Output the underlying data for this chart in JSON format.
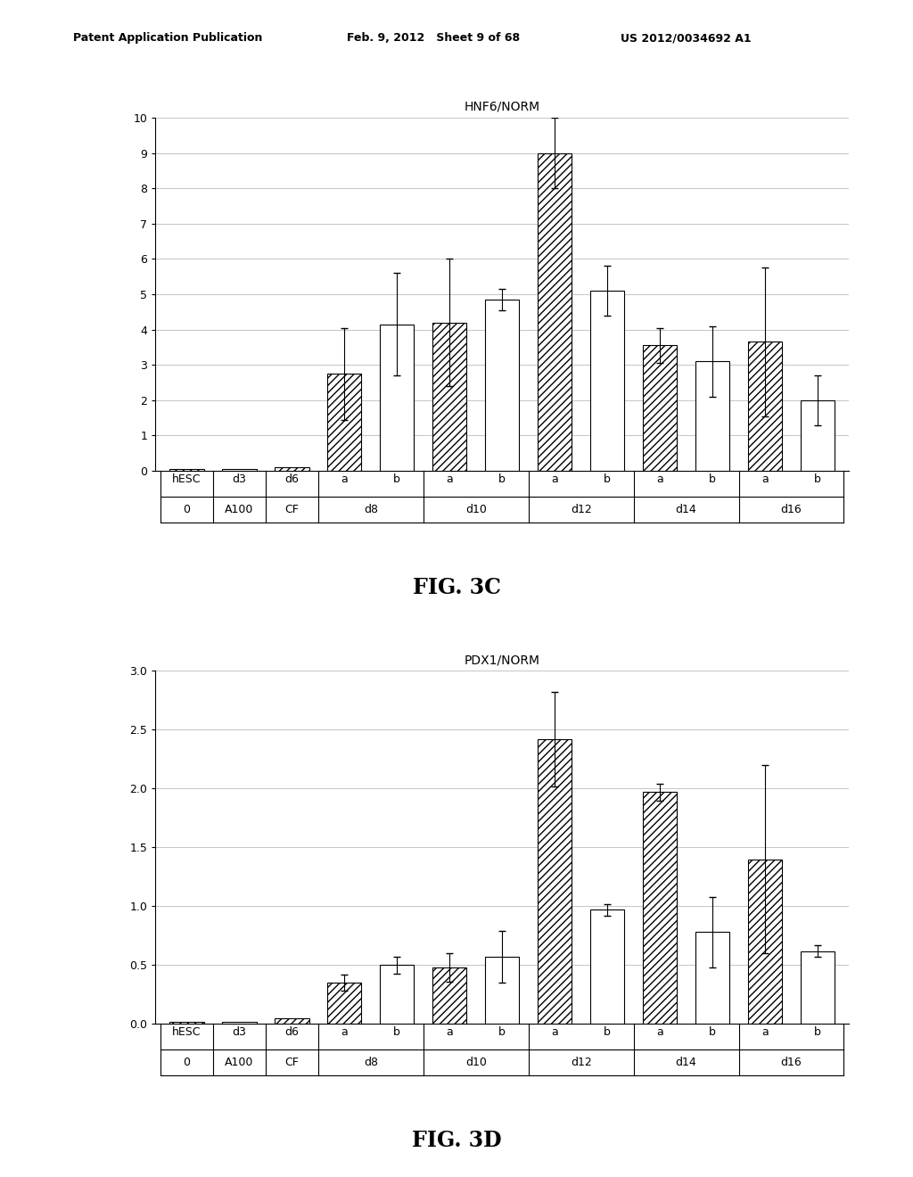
{
  "fig3c": {
    "title": "HNF6/NORM",
    "ylim": [
      0,
      10
    ],
    "yticks": [
      0,
      1,
      2,
      3,
      4,
      5,
      6,
      7,
      8,
      9,
      10
    ],
    "bars": [
      {
        "label": "hESC",
        "group": "0",
        "value": 0.05,
        "err": 0.0,
        "hatch": true
      },
      {
        "label": "d3",
        "group": "A100",
        "value": 0.05,
        "err": 0.0,
        "hatch": false
      },
      {
        "label": "d6",
        "group": "CF",
        "value": 0.1,
        "err": 0.0,
        "hatch": true
      },
      {
        "label": "a",
        "group": "d8",
        "value": 2.75,
        "err": 1.3,
        "hatch": true
      },
      {
        "label": "b",
        "group": "d8",
        "value": 4.15,
        "err": 1.45,
        "hatch": false
      },
      {
        "label": "a",
        "group": "d10",
        "value": 4.2,
        "err": 1.8,
        "hatch": true
      },
      {
        "label": "b",
        "group": "d10",
        "value": 4.85,
        "err": 0.3,
        "hatch": false
      },
      {
        "label": "a",
        "group": "d12",
        "value": 9.0,
        "err": 1.0,
        "hatch": true
      },
      {
        "label": "b",
        "group": "d12",
        "value": 5.1,
        "err": 0.7,
        "hatch": false
      },
      {
        "label": "a",
        "group": "d14",
        "value": 3.55,
        "err": 0.5,
        "hatch": true
      },
      {
        "label": "b",
        "group": "d14",
        "value": 3.1,
        "err": 1.0,
        "hatch": false
      },
      {
        "label": "a",
        "group": "d16",
        "value": 3.65,
        "err": 2.1,
        "hatch": true
      },
      {
        "label": "b",
        "group": "d16",
        "value": 2.0,
        "err": 0.7,
        "hatch": false
      }
    ],
    "fig_label": "FIG. 3C"
  },
  "fig3d": {
    "title": "PDX1/NORM",
    "ylim": [
      0,
      3
    ],
    "yticks": [
      0,
      0.5,
      1.0,
      1.5,
      2.0,
      2.5,
      3.0
    ],
    "bars": [
      {
        "label": "hESC",
        "group": "0",
        "value": 0.02,
        "err": 0.0,
        "hatch": true
      },
      {
        "label": "d3",
        "group": "A100",
        "value": 0.02,
        "err": 0.0,
        "hatch": false
      },
      {
        "label": "d6",
        "group": "CF",
        "value": 0.05,
        "err": 0.0,
        "hatch": true
      },
      {
        "label": "a",
        "group": "d8",
        "value": 0.35,
        "err": 0.07,
        "hatch": true
      },
      {
        "label": "b",
        "group": "d8",
        "value": 0.5,
        "err": 0.07,
        "hatch": false
      },
      {
        "label": "a",
        "group": "d10",
        "value": 0.48,
        "err": 0.12,
        "hatch": true
      },
      {
        "label": "b",
        "group": "d10",
        "value": 0.57,
        "err": 0.22,
        "hatch": false
      },
      {
        "label": "a",
        "group": "d12",
        "value": 2.42,
        "err": 0.4,
        "hatch": true
      },
      {
        "label": "b",
        "group": "d12",
        "value": 0.97,
        "err": 0.05,
        "hatch": false
      },
      {
        "label": "a",
        "group": "d14",
        "value": 1.97,
        "err": 0.07,
        "hatch": true
      },
      {
        "label": "b",
        "group": "d14",
        "value": 0.78,
        "err": 0.3,
        "hatch": false
      },
      {
        "label": "a",
        "group": "d16",
        "value": 1.4,
        "err": 0.8,
        "hatch": true
      },
      {
        "label": "b",
        "group": "d16",
        "value": 0.62,
        "err": 0.05,
        "hatch": false
      }
    ],
    "fig_label": "FIG. 3D"
  },
  "header_left": "Patent Application Publication",
  "header_mid": "Feb. 9, 2012   Sheet 9 of 68",
  "header_right": "US 2012/0034692 A1",
  "bar_width": 0.65,
  "bar_color": "white",
  "hatch_pattern": "////",
  "edge_color": "black",
  "grid_color": "#bbbbbb",
  "bg_color": "white",
  "font_size": 9,
  "title_font_size": 10
}
